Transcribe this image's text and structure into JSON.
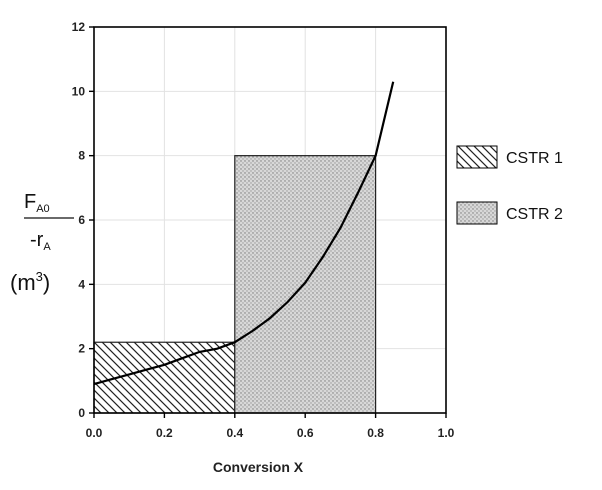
{
  "chart_data": {
    "type": "area",
    "xlabel": "Conversion X",
    "ylabel_num_main": "F",
    "ylabel_num_sub": "A0",
    "ylabel_den_main": "-r",
    "ylabel_den_sub": "A",
    "ylabel_units_open": "(m",
    "ylabel_units_sup": "3",
    "ylabel_units_close": ")",
    "xlim": [
      0.0,
      1.0
    ],
    "ylim": [
      0,
      12
    ],
    "xticks": [
      "0.0",
      "0.2",
      "0.4",
      "0.6",
      "0.8",
      "1.0"
    ],
    "yticks": [
      "0",
      "2",
      "4",
      "6",
      "8",
      "10",
      "12"
    ],
    "grid": true,
    "legend_position": "right",
    "curve": {
      "x": [
        0.0,
        0.05,
        0.1,
        0.15,
        0.2,
        0.25,
        0.3,
        0.35,
        0.4,
        0.45,
        0.5,
        0.55,
        0.6,
        0.65,
        0.7,
        0.75,
        0.8,
        0.85
      ],
      "y": [
        0.9,
        1.05,
        1.2,
        1.35,
        1.5,
        1.7,
        1.9,
        2.0,
        2.2,
        2.55,
        2.95,
        3.45,
        4.05,
        4.85,
        5.75,
        6.85,
        8.0,
        10.3
      ]
    },
    "series": [
      {
        "name": "CSTR 1",
        "x_start": 0.0,
        "x_end": 0.4,
        "height": 2.2,
        "pattern": "diagonal-hatch"
      },
      {
        "name": "CSTR 2",
        "x_start": 0.4,
        "x_end": 0.8,
        "height": 8.0,
        "pattern": "dotted-fill"
      }
    ]
  }
}
